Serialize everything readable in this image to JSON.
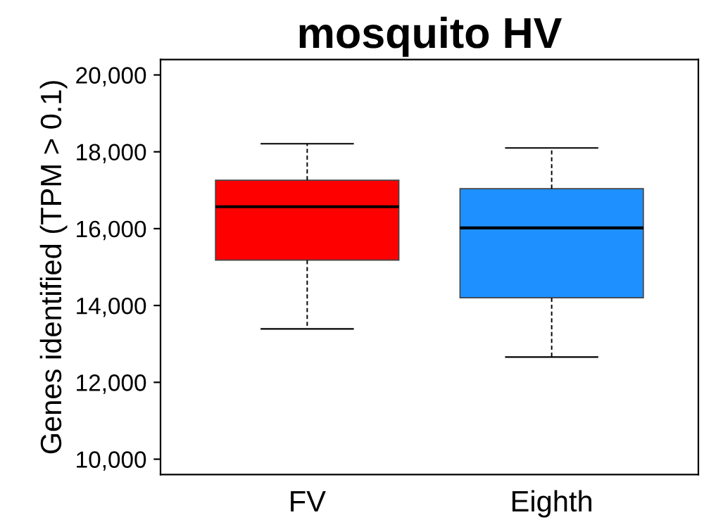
{
  "chart_data": {
    "type": "box",
    "title": "mosquito HV",
    "ylabel": "Genes identified (TPM > 0.1)",
    "categories": [
      "FV",
      "Eighth"
    ],
    "boxes": [
      {
        "low": 13390,
        "q1": 15180,
        "median": 16570,
        "q3": 17260,
        "high": 18210
      },
      {
        "low": 12660,
        "q1": 14200,
        "median": 16020,
        "q3": 17040,
        "high": 18100
      }
    ],
    "colors": [
      "#ff0000",
      "#1e90ff"
    ],
    "ylim": [
      9600,
      20400
    ],
    "yticks": [
      {
        "value": 10000,
        "label": "10,000"
      },
      {
        "value": 12000,
        "label": "12,000"
      },
      {
        "value": 14000,
        "label": "14,000"
      },
      {
        "value": 16000,
        "label": "16,000"
      },
      {
        "value": 18000,
        "label": "18,000"
      },
      {
        "value": 20000,
        "label": "20,000"
      }
    ],
    "grid": false,
    "legend": false
  }
}
